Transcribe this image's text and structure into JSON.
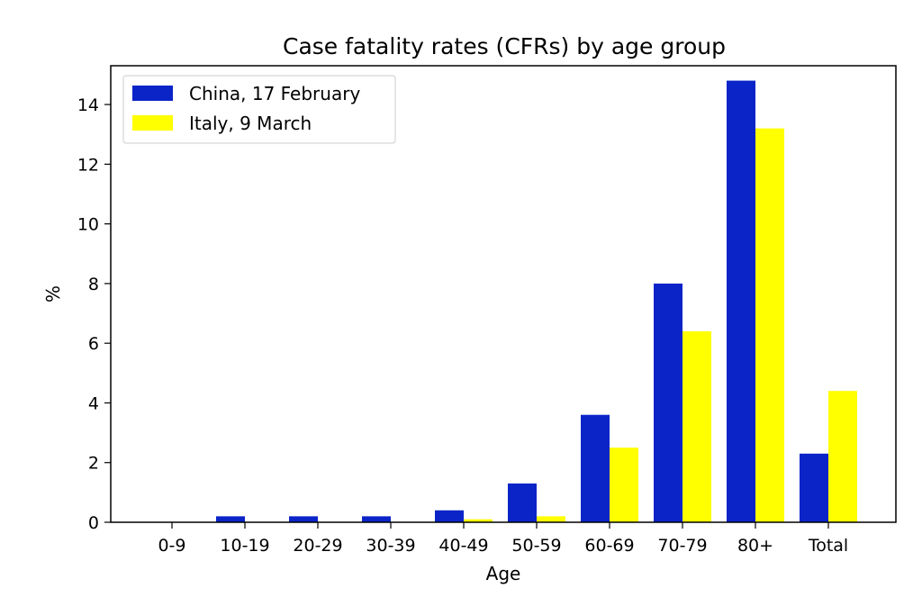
{
  "chart_data": {
    "type": "bar",
    "title": "Case fatality rates (CFRs) by age group",
    "xlabel": "Age",
    "ylabel": "%",
    "categories": [
      "0-9",
      "10-19",
      "20-29",
      "30-39",
      "40-49",
      "50-59",
      "60-69",
      "70-79",
      "80+",
      "Total"
    ],
    "series": [
      {
        "name": "China, 17 February",
        "color": "#0a24c8",
        "values": [
          0,
          0.2,
          0.2,
          0.2,
          0.4,
          1.3,
          3.6,
          8.0,
          14.8,
          2.3
        ]
      },
      {
        "name": "Italy, 9 March",
        "color": "#ffff00",
        "values": [
          0,
          0,
          0,
          0,
          0.1,
          0.2,
          2.5,
          6.4,
          13.2,
          4.4
        ]
      }
    ],
    "ylim": [
      0,
      15.3
    ],
    "yticks": [
      0,
      2,
      4,
      6,
      8,
      10,
      12,
      14
    ],
    "legend_position": "top-left",
    "grid": false
  }
}
